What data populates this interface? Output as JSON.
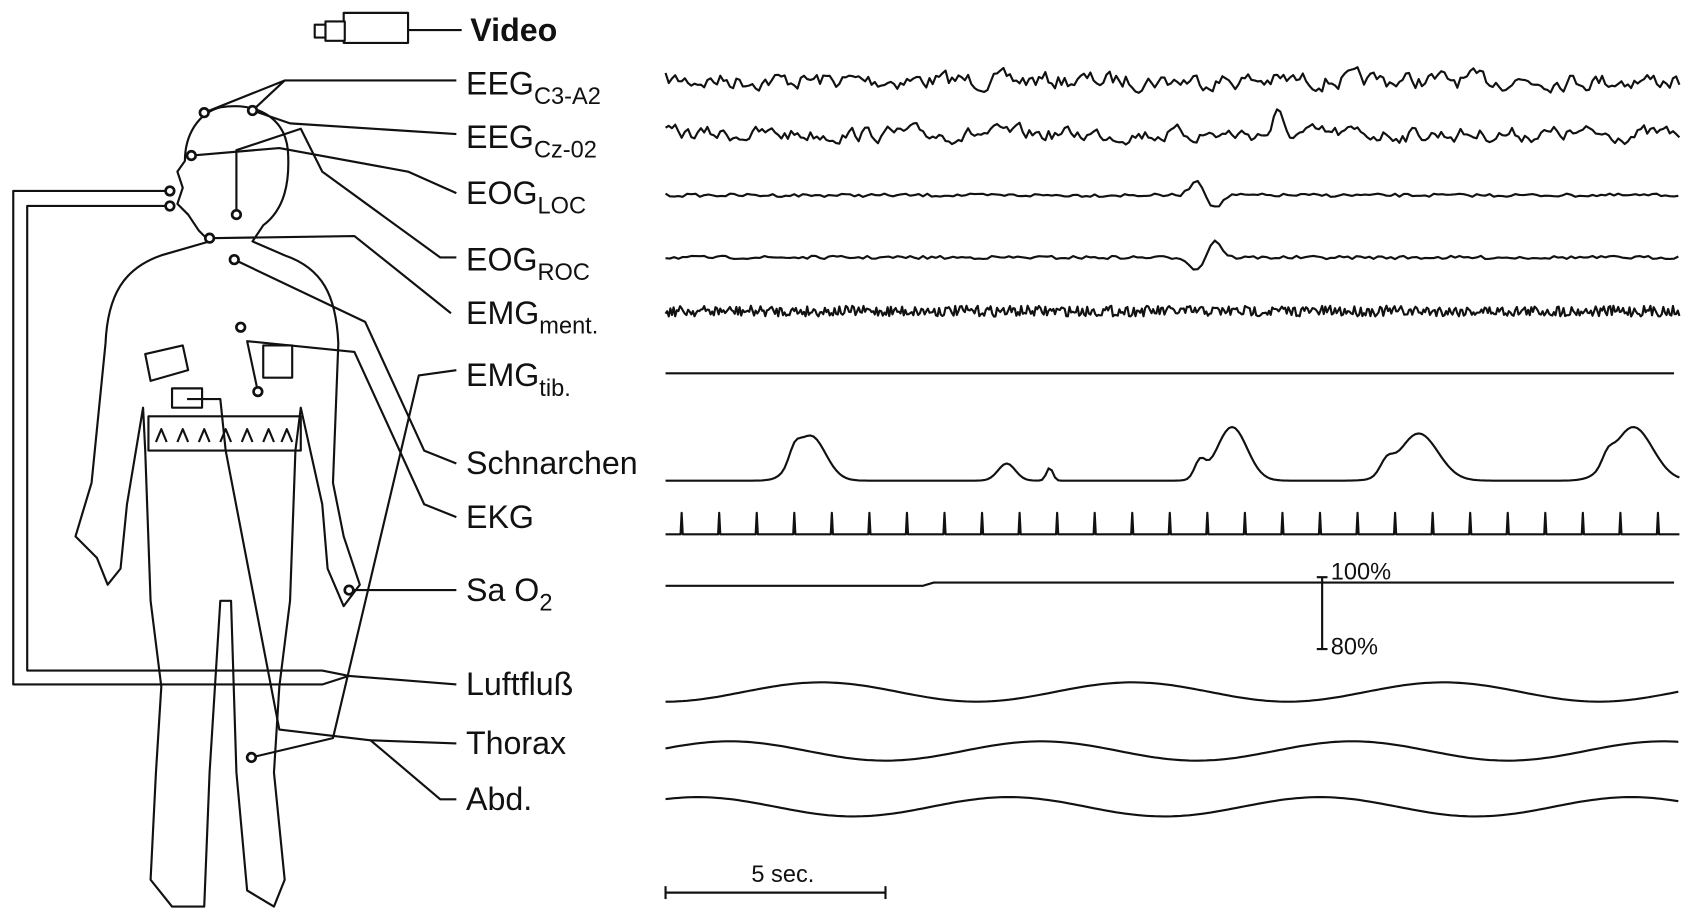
{
  "header": {
    "video": "Video"
  },
  "channels": [
    {
      "main": "EEG",
      "sub": "C3-A2"
    },
    {
      "main": "EEG",
      "sub": "Cz-02"
    },
    {
      "main": "EOG",
      "sub": "LOC"
    },
    {
      "main": "EOG",
      "sub": "ROC"
    },
    {
      "main": "EMG",
      "sub": "ment."
    },
    {
      "main": "EMG",
      "sub": "tib."
    },
    {
      "main": "Schnarchen"
    },
    {
      "main": "EKG"
    },
    {
      "main": "Sa O",
      "sub": "2"
    },
    {
      "main": "Luftfluß"
    },
    {
      "main": "Thorax"
    },
    {
      "main": "Abd."
    }
  ],
  "sao2_scale": {
    "top": "100%",
    "bottom": "80%"
  },
  "time_scale": "5 sec."
}
